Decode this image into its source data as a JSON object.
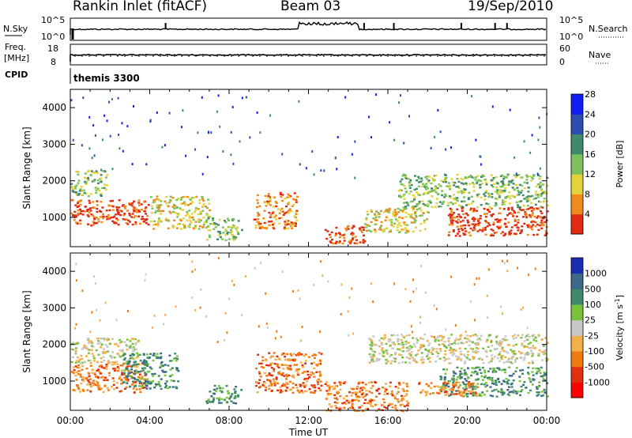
{
  "header": {
    "station": "Rankin Inlet (fitACF)",
    "beam": "Beam 03",
    "date": "19/Sep/2010"
  },
  "top_panels": {
    "nsky_label": "N.Sky",
    "nsky_ticks": [
      "10^5",
      "10^0"
    ],
    "nsearch_label": "N.Search",
    "nsearch_ticks": [
      "10^5",
      "10^0"
    ],
    "freq_label": "Freq.",
    "freq_unit": "[MHz]",
    "freq_ticks": [
      "18",
      "8"
    ],
    "nave_label": "Nave",
    "nave_ticks": [
      "60",
      "0"
    ],
    "cpid_label": "CPID",
    "cpid_value": "themis 3300"
  },
  "chart_data": [
    {
      "type": "heatmap",
      "name": "power",
      "ylabel": "Slant Range [km]",
      "yticks": [
        "1000",
        "2000",
        "3000",
        "4000"
      ],
      "ylim": [
        200,
        4500
      ],
      "xlim_hours": [
        0,
        24
      ],
      "colorbar_label": "Power [dB]",
      "colorbar_ticks": [
        "4",
        "8",
        "12",
        "16",
        "20",
        "24",
        "28"
      ],
      "colorbar_colors": [
        "#0f1ff0",
        "#2a4fb0",
        "#3e8a6a",
        "#7cc15e",
        "#e4d23a",
        "#f08a1a",
        "#e02a12"
      ],
      "regions": [
        {
          "t0": 0.0,
          "t1": 4.0,
          "r0": 800,
          "r1": 1500,
          "level": 6
        },
        {
          "t0": 0.0,
          "t1": 1.8,
          "r0": 1600,
          "r1": 2300,
          "level": 3
        },
        {
          "t0": 4.0,
          "t1": 7.0,
          "r0": 700,
          "r1": 1600,
          "level": 4
        },
        {
          "t0": 6.8,
          "t1": 8.6,
          "r0": 400,
          "r1": 1000,
          "level": 3
        },
        {
          "t0": 9.2,
          "t1": 11.4,
          "r0": 700,
          "r1": 1700,
          "level": 5
        },
        {
          "t0": 12.8,
          "t1": 14.8,
          "r0": 300,
          "r1": 800,
          "level": 6
        },
        {
          "t0": 14.8,
          "t1": 18.0,
          "r0": 600,
          "r1": 1300,
          "level": 4
        },
        {
          "t0": 16.5,
          "t1": 24.0,
          "r0": 1300,
          "r1": 2200,
          "level": 3
        },
        {
          "t0": 19.0,
          "t1": 24.0,
          "r0": 500,
          "r1": 1300,
          "level": 6
        }
      ]
    },
    {
      "type": "heatmap",
      "name": "velocity",
      "ylabel": "Slant Range [km]",
      "yticks": [
        "1000",
        "2000",
        "3000",
        "4000"
      ],
      "ylim": [
        200,
        4500
      ],
      "xlabel": "Time UT",
      "xticks": [
        "00:00",
        "04:00",
        "08:00",
        "12:00",
        "16:00",
        "20:00",
        "00:00"
      ],
      "xlim_hours": [
        0,
        24
      ],
      "colorbar_label": "Velocity [m s",
      "colorbar_unit_exp": "-1",
      "colorbar_ticks": [
        "1000",
        "500",
        "100",
        "25",
        "-25",
        "-100",
        "-500",
        "-1000"
      ],
      "colorbar_colors": [
        "#1a2fb0",
        "#3d6a8a",
        "#3e8a6a",
        "#79c23c",
        "#c8c8c8",
        "#f3b04a",
        "#f07a12",
        "#e03010",
        "#ff0000"
      ],
      "regions": [
        {
          "t0": 0.0,
          "t1": 3.4,
          "r0": 1500,
          "r1": 2200,
          "level": 4
        },
        {
          "t0": 0.0,
          "t1": 3.8,
          "r0": 700,
          "r1": 1500,
          "level": 6
        },
        {
          "t0": 2.6,
          "t1": 5.4,
          "r0": 800,
          "r1": 1800,
          "level": 2
        },
        {
          "t0": 6.8,
          "t1": 8.6,
          "r0": 400,
          "r1": 900,
          "level": 2
        },
        {
          "t0": 9.3,
          "t1": 12.6,
          "r0": 700,
          "r1": 1800,
          "level": 6
        },
        {
          "t0": 12.8,
          "t1": 17.0,
          "r0": 200,
          "r1": 1000,
          "level": 6
        },
        {
          "t0": 15.0,
          "t1": 24.0,
          "r0": 1500,
          "r1": 2300,
          "level": 4
        },
        {
          "t0": 18.6,
          "t1": 24.0,
          "r0": 600,
          "r1": 1400,
          "level": 2
        },
        {
          "t0": 17.5,
          "t1": 20.5,
          "r0": 600,
          "r1": 1000,
          "level": 6
        }
      ]
    }
  ]
}
